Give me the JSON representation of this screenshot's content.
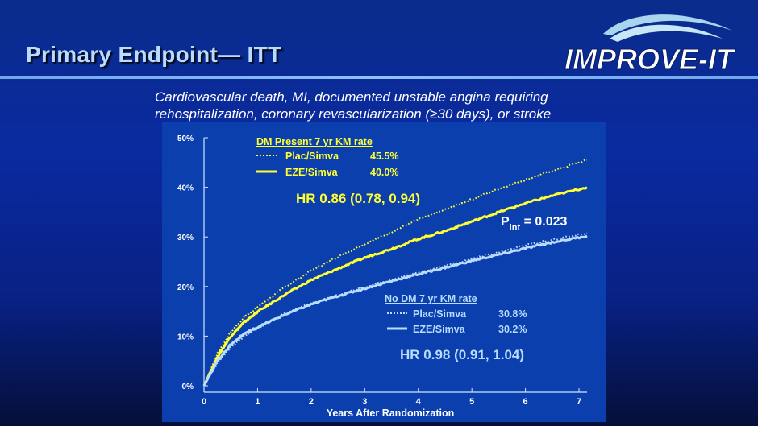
{
  "slide": {
    "title": "Primary Endpoint— ITT",
    "logo_text": "IMPROVE-IT",
    "subtitle_line1": "Cardiovascular death, MI, documented unstable angina requiring",
    "subtitle_line2": "rehospitalization, coronary revascularization (≥30 days), or stroke"
  },
  "colors": {
    "dm_series": "#ffff33",
    "nodm_series": "#b9dcff",
    "axis_text": "#ffffff",
    "panel": "#0b3fae"
  },
  "chart_data": {
    "type": "line",
    "xlabel": "Years After Randomization",
    "ylabel": "",
    "x_ticks": [
      "0",
      "1",
      "2",
      "3",
      "4",
      "5",
      "6",
      "7"
    ],
    "y_ticks": [
      "0%",
      "10%",
      "20%",
      "30%",
      "40%",
      "50%"
    ],
    "xlim": [
      0,
      7.15
    ],
    "ylim": [
      0,
      50
    ],
    "grid": false,
    "legends": [
      {
        "title": "DM Present 7 yr KM rate",
        "entries": [
          {
            "label": "Plac/Simva",
            "value": "45.5%",
            "style": "dotted",
            "color": "#ffff33"
          },
          {
            "label": "EZE/Simva",
            "value": "40.0%",
            "style": "solid",
            "color": "#ffff33"
          }
        ]
      },
      {
        "title": "No DM 7 yr KM rate",
        "entries": [
          {
            "label": "Plac/Simva",
            "value": "30.8%",
            "style": "dotted",
            "color": "#b9dcff"
          },
          {
            "label": "EZE/Simva",
            "value": "30.2%",
            "style": "solid",
            "color": "#b9dcff"
          }
        ]
      }
    ],
    "annotations": {
      "hr_dm": "HR 0.86 (0.78, 0.94)",
      "hr_nodm": "HR 0.98 (0.91, 1.04)",
      "p_main": "P",
      "p_sub": "int",
      "p_value": " = 0.023"
    },
    "series": [
      {
        "name": "Plac/Simva",
        "group": "DM",
        "style": "dotted",
        "color": "#ffff33",
        "x": [
          0,
          0.25,
          0.5,
          0.75,
          1,
          1.5,
          2,
          2.5,
          3,
          3.5,
          4,
          4.5,
          5,
          5.5,
          6,
          6.5,
          7.15
        ],
        "y": [
          0,
          6.5,
          10.8,
          13.8,
          15.9,
          19.8,
          23.2,
          26.0,
          28.6,
          31.0,
          33.5,
          35.5,
          37.6,
          39.7,
          41.5,
          43.3,
          45.5
        ]
      },
      {
        "name": "EZE/Simva",
        "group": "DM",
        "style": "solid",
        "color": "#ffff33",
        "x": [
          0,
          0.25,
          0.5,
          0.75,
          1,
          1.5,
          2,
          2.5,
          3,
          3.5,
          4,
          4.5,
          5,
          5.5,
          6,
          6.5,
          7.15
        ],
        "y": [
          0,
          5.8,
          10.0,
          12.8,
          14.9,
          18.3,
          21.3,
          23.6,
          25.8,
          27.6,
          29.6,
          31.2,
          33.1,
          35.0,
          36.8,
          38.3,
          40.0
        ]
      },
      {
        "name": "Plac/Simva",
        "group": "No DM",
        "style": "dotted",
        "color": "#b9dcff",
        "x": [
          0,
          0.25,
          0.5,
          0.75,
          1,
          1.5,
          2,
          2.5,
          3,
          3.5,
          4,
          4.5,
          5,
          5.5,
          6,
          6.5,
          7.15
        ],
        "y": [
          0,
          4.6,
          7.7,
          10.0,
          11.6,
          14.5,
          16.6,
          18.3,
          19.9,
          21.4,
          22.8,
          24.2,
          25.6,
          26.9,
          28.3,
          29.4,
          30.8
        ]
      },
      {
        "name": "EZE/Simva",
        "group": "No DM",
        "style": "solid",
        "color": "#b9dcff",
        "x": [
          0,
          0.25,
          0.5,
          0.75,
          1,
          1.5,
          2,
          2.5,
          3,
          3.5,
          4,
          4.5,
          5,
          5.5,
          6,
          6.5,
          7.15
        ],
        "y": [
          0,
          5.0,
          8.3,
          10.5,
          11.8,
          14.3,
          16.4,
          18.1,
          19.6,
          21.1,
          22.5,
          23.8,
          25.2,
          26.4,
          27.7,
          28.9,
          30.2
        ]
      }
    ]
  }
}
